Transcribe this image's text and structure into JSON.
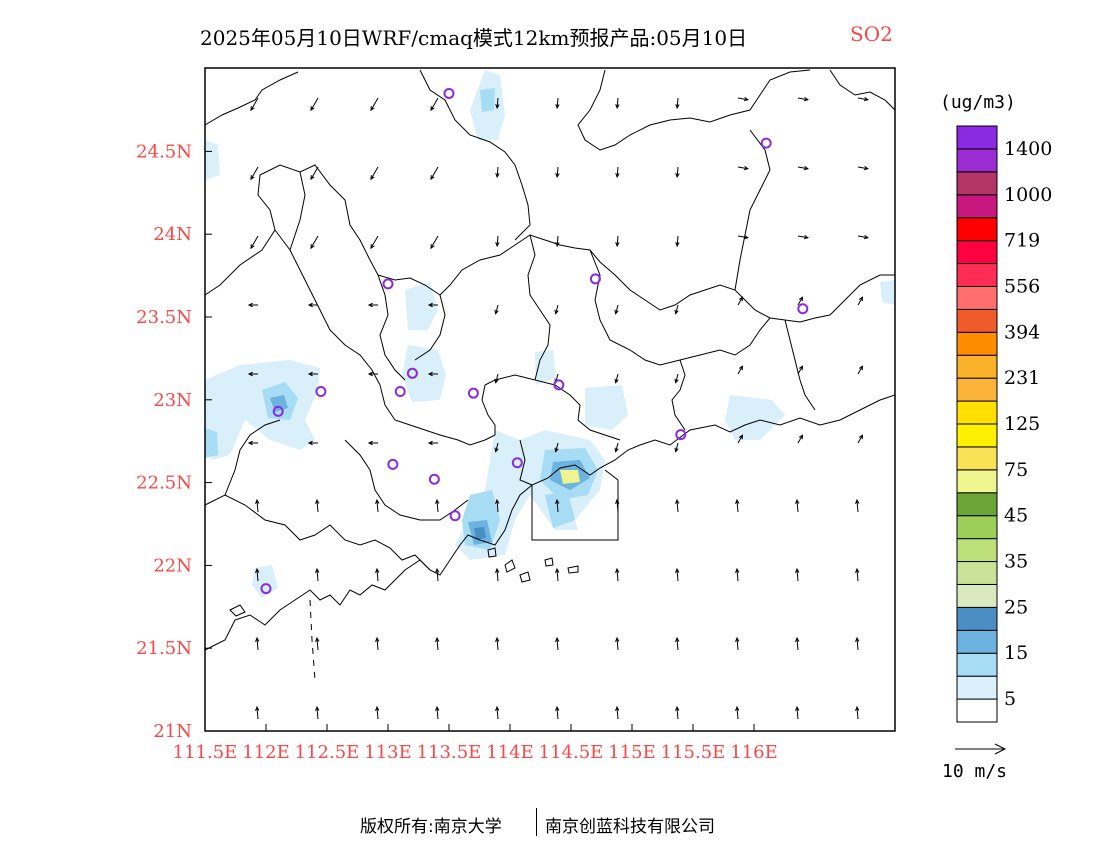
{
  "title": {
    "main": "2025年05月10日WRF/cmaq模式12km预报产品:05月10日",
    "species": "SO2"
  },
  "map": {
    "lon_labels": [
      "111.5E",
      "112E",
      "112.5E",
      "113E",
      "113.5E",
      "114E",
      "114.5E",
      "115E",
      "115.5E",
      "116E"
    ],
    "lat_labels": [
      "24.5N",
      "24N",
      "23.5N",
      "23N",
      "22.5N",
      "22N",
      "21.5N",
      "21N"
    ],
    "label_color": "#ff4444",
    "stations": [
      {
        "lon": 113.5,
        "lat": 24.85
      },
      {
        "lon": 116.1,
        "lat": 24.55
      },
      {
        "lon": 113.0,
        "lat": 23.7
      },
      {
        "lon": 114.7,
        "lat": 23.73
      },
      {
        "lon": 116.4,
        "lat": 23.55
      },
      {
        "lon": 113.2,
        "lat": 23.16
      },
      {
        "lon": 113.1,
        "lat": 23.05
      },
      {
        "lon": 112.45,
        "lat": 23.05
      },
      {
        "lon": 112.1,
        "lat": 22.93
      },
      {
        "lon": 113.7,
        "lat": 23.04
      },
      {
        "lon": 114.4,
        "lat": 23.09
      },
      {
        "lon": 115.4,
        "lat": 22.79
      },
      {
        "lon": 113.04,
        "lat": 22.61
      },
      {
        "lon": 113.38,
        "lat": 22.52
      },
      {
        "lon": 114.06,
        "lat": 22.62
      },
      {
        "lon": 113.55,
        "lat": 22.3
      },
      {
        "lon": 112.0,
        "lat": 21.86
      }
    ],
    "station_color": "#8a2be2"
  },
  "colorbar": {
    "unit": "(ug/m3)",
    "colors": [
      "#ffffff",
      "#d9effa",
      "#a7dcf5",
      "#6cb3e0",
      "#4a8ec4",
      "#dbe9c0",
      "#c8e296",
      "#bde07a",
      "#9ccf59",
      "#6aa535",
      "#eef58e",
      "#f9e155",
      "#fff000",
      "#ffe000",
      "#fbb238",
      "#f9b12a",
      "#ff8b00",
      "#ef5b2a",
      "#ff6d6d",
      "#ff2d55",
      "#ff0040",
      "#ff0000",
      "#c8177f",
      "#b23567",
      "#9b2cd2",
      "#8a2be2"
    ],
    "labels": [
      "5",
      "15",
      "25",
      "35",
      "45",
      "75",
      "125",
      "231",
      "394",
      "556",
      "719",
      "1000",
      "1400"
    ]
  },
  "wind_legend": {
    "label": "10 m/s"
  },
  "footer": {
    "left": "版权所有:南京大学",
    "right": "南京创蓝科技有限公司"
  }
}
